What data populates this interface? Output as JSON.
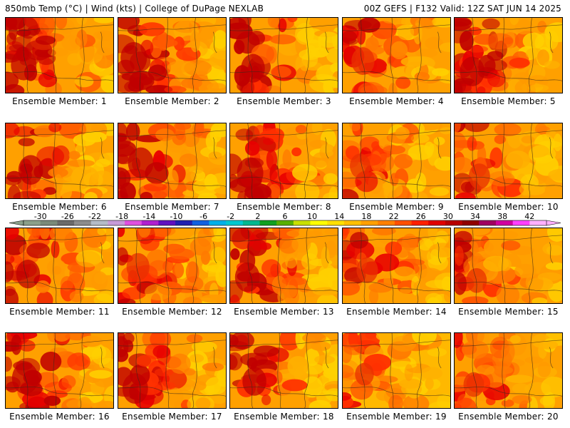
{
  "header": {
    "left": "850mb Temp (°C) | Wind (kts) | College of DuPage NEXLAB",
    "right": "00Z GEFS | F132 Valid: 12Z SAT JUN 14 2025"
  },
  "members": [
    {
      "label": "Ensemble Member: 1",
      "heat": 0.85
    },
    {
      "label": "Ensemble Member: 2",
      "heat": 0.9
    },
    {
      "label": "Ensemble Member: 3",
      "heat": 0.75
    },
    {
      "label": "Ensemble Member: 4",
      "heat": 0.7
    },
    {
      "label": "Ensemble Member: 5",
      "heat": 0.8
    },
    {
      "label": "Ensemble Member: 6",
      "heat": 0.8
    },
    {
      "label": "Ensemble Member: 7",
      "heat": 0.85
    },
    {
      "label": "Ensemble Member: 8",
      "heat": 0.9
    },
    {
      "label": "Ensemble Member: 9",
      "heat": 0.55
    },
    {
      "label": "Ensemble Member: 10",
      "heat": 0.6
    },
    {
      "label": "Ensemble Member: 11",
      "heat": 0.75
    },
    {
      "label": "Ensemble Member: 12",
      "heat": 0.7
    },
    {
      "label": "Ensemble Member: 13",
      "heat": 0.8
    },
    {
      "label": "Ensemble Member: 14",
      "heat": 0.6
    },
    {
      "label": "Ensemble Member: 15",
      "heat": 0.55
    },
    {
      "label": "Ensemble Member: 16",
      "heat": 0.9
    },
    {
      "label": "Ensemble Member: 17",
      "heat": 0.85
    },
    {
      "label": "Ensemble Member: 18",
      "heat": 0.75
    },
    {
      "label": "Ensemble Member: 19",
      "heat": 0.45
    },
    {
      "label": "Ensemble Member: 20",
      "heat": 0.55
    }
  ],
  "colorbar": {
    "labels": [
      "-30",
      "-26",
      "-22",
      "-18",
      "-14",
      "-10",
      "-6",
      "-2",
      "2",
      "6",
      "10",
      "14",
      "18",
      "22",
      "26",
      "30",
      "34",
      "38",
      "42"
    ],
    "colors": [
      "#8aa08a",
      "#7a8a7a",
      "#6a6a6a",
      "#8c8c8c",
      "#b4bcc8",
      "#c79ad8",
      "#e050e0",
      "#b020d0",
      "#6010c0",
      "#2020b0",
      "#1060e0",
      "#00b0e8",
      "#00c8d0",
      "#00b890",
      "#10a020",
      "#58b000",
      "#c8e000",
      "#ffff00",
      "#ffe000",
      "#ffc000",
      "#ffa000",
      "#ff8000",
      "#ff5000",
      "#ff2000",
      "#e00000",
      "#b80000",
      "#900000",
      "#a00060",
      "#d000a0",
      "#ff40ff",
      "#ffb0ff"
    ]
  }
}
